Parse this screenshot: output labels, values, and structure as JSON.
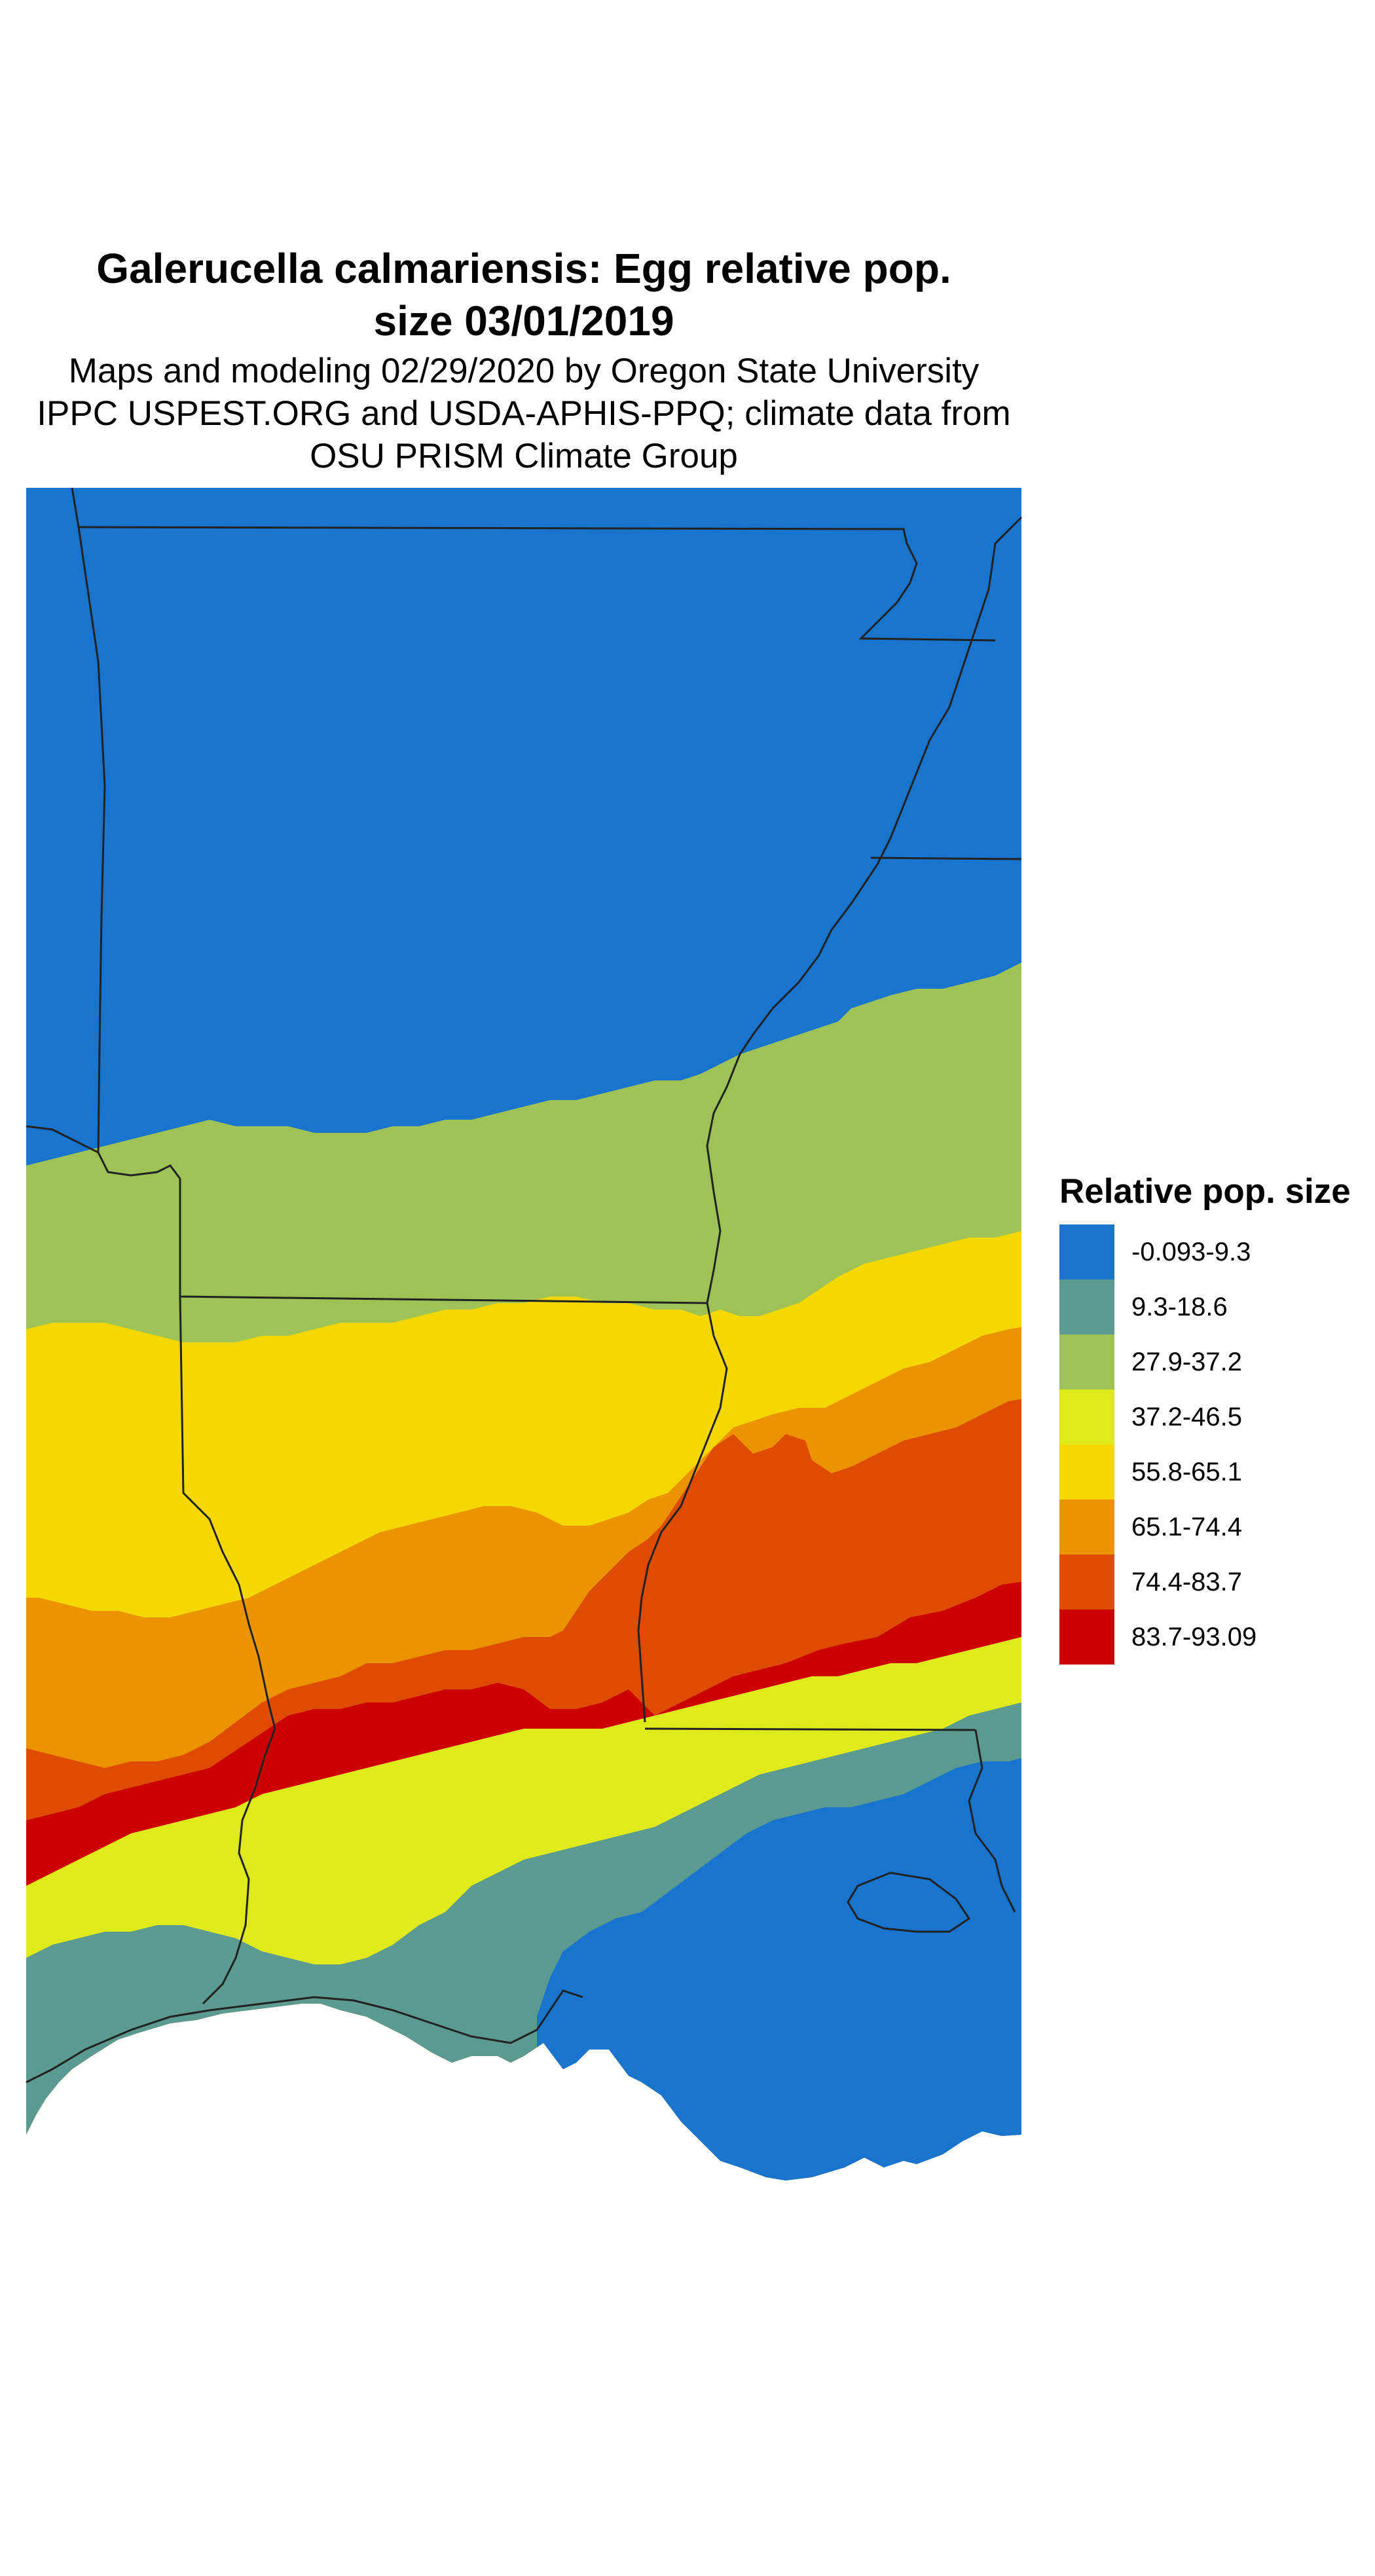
{
  "title": {
    "line1": "Galerucella calmariensis: Egg relative pop.",
    "line2": "size 03/01/2019"
  },
  "subtitle": {
    "line1": "Maps and modeling 02/29/2020 by Oregon State University",
    "line2": "IPPC USPEST.ORG and USDA-APHIS-PPQ; climate data from",
    "line3": "OSU PRISM Climate Group"
  },
  "legend": {
    "title": "Relative pop. size",
    "items": [
      {
        "label": "-0.093-9.3",
        "color": "#1874cd"
      },
      {
        "label": "9.3-18.6",
        "color": "#5a9a90"
      },
      {
        "label": "27.9-37.2",
        "color": "#9ec255"
      },
      {
        "label": "37.2-46.5",
        "color": "#dfea1a"
      },
      {
        "label": "55.8-65.1",
        "color": "#f5d800"
      },
      {
        "label": "65.1-74.4",
        "color": "#ec9400"
      },
      {
        "label": "74.4-83.7",
        "color": "#dd4c00"
      },
      {
        "label": "83.7-93.09",
        "color": "#cc0000"
      }
    ]
  },
  "map": {
    "region": "Arkansas, Louisiana, Mississippi and adjacent areas",
    "boundary_color": "#222222"
  }
}
